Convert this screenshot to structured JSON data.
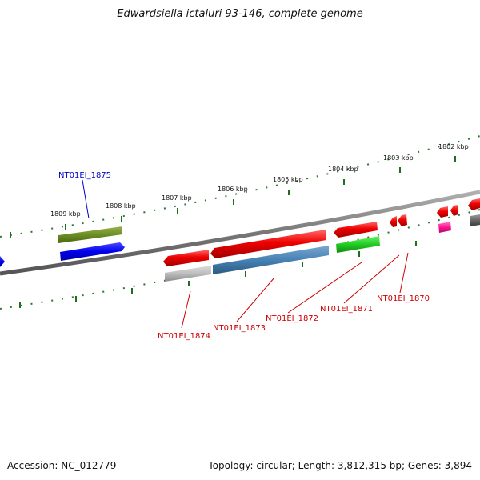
{
  "title": "Edwardsiella ictaluri 93-146, complete genome",
  "accession": "Accession: NC_012779",
  "topology": "Topology: circular; Length: 3,812,315 bp; Genes: 3,894",
  "colors": {
    "backbone": "#7a7a7a",
    "tick": "#2a7a2a",
    "label_red": "#cc0000",
    "label_blue": "#0000cc"
  },
  "kbp_labels": [
    {
      "text": "1809 kbp"
    },
    {
      "text": "1808 kbp"
    },
    {
      "text": "1807 kbp"
    },
    {
      "text": "1806 kbp"
    },
    {
      "text": "1805 kbp"
    },
    {
      "text": "1804 kbp"
    },
    {
      "text": "1803 kbp"
    },
    {
      "text": "1802 kbp"
    }
  ],
  "gene_labels": [
    {
      "text": "NT01EI_1875",
      "color": "#0000cc"
    },
    {
      "text": "NT01EI_1874",
      "color": "#cc0000"
    },
    {
      "text": "NT01EI_1873",
      "color": "#cc0000"
    },
    {
      "text": "NT01EI_1872",
      "color": "#cc0000"
    },
    {
      "text": "NT01EI_1871",
      "color": "#cc0000"
    },
    {
      "text": "NT01EI_1870",
      "color": "#cc0000"
    }
  ]
}
